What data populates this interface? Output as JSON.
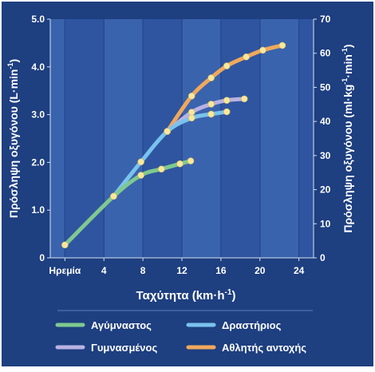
{
  "chart_data": {
    "type": "line",
    "xlabel": "Ταχύτητα (km·h",
    "xlabel_sup": "-1",
    "xlabel_end": ")",
    "ylabel_left": "Πρόσληψη οξυγόνου (L·min",
    "ylabel_left_sup": "-1",
    "ylabel_left_end": ")",
    "ylabel_right": "Πρόσληψη οξυγόνου (ml·kg",
    "ylabel_right_sup1": "-1",
    "ylabel_right_mid": "·min",
    "ylabel_right_sup2": "-1",
    "ylabel_right_end": ")",
    "x_ticks": [
      {
        "v": 0,
        "label": "Ηρεμία"
      },
      {
        "v": 4,
        "label": "4"
      },
      {
        "v": 8,
        "label": "8"
      },
      {
        "v": 12,
        "label": "12"
      },
      {
        "v": 16,
        "label": "16"
      },
      {
        "v": 20,
        "label": "20"
      },
      {
        "v": 24,
        "label": "24"
      }
    ],
    "xlim": [
      -1.5,
      25.5
    ],
    "ylim_left": [
      0,
      5.0
    ],
    "y_ticks_left": [
      "0",
      "1.0",
      "2.0",
      "3.0",
      "4.0",
      "5.0"
    ],
    "ylim_right": [
      0,
      70
    ],
    "y_ticks_right": [
      "0",
      "10",
      "20",
      "30",
      "40",
      "50",
      "60",
      "70"
    ],
    "background_bands": [
      "#3a63ad",
      "#2f55a0"
    ],
    "series": [
      {
        "name": "Αγύμναστος",
        "color": "#7fc98f",
        "x": [
          0,
          5,
          7.8,
          9.9,
          11.8,
          12.9
        ],
        "y": [
          0.27,
          1.29,
          1.73,
          1.86,
          1.97,
          2.03
        ]
      },
      {
        "name": "Δραστήριος",
        "color": "#79c3ee",
        "x": [
          5,
          7.8,
          10.5,
          13,
          15,
          16.6
        ],
        "y": [
          1.29,
          2.01,
          2.65,
          2.93,
          3.01,
          3.06
        ]
      },
      {
        "name": "Γυμνασμένος",
        "color": "#b9b2e3",
        "x": [
          10.5,
          13,
          15,
          16.6,
          18.4
        ],
        "y": [
          2.65,
          3.05,
          3.22,
          3.3,
          3.33
        ]
      },
      {
        "name": "Αθλητής αντοχής",
        "color": "#f0a85c",
        "x": [
          10.5,
          13,
          15,
          16.6,
          18.6,
          20.3,
          22.3
        ],
        "y": [
          2.65,
          3.39,
          3.77,
          4.02,
          4.21,
          4.35,
          4.45
        ]
      }
    ],
    "point_color": "#f8e79c"
  }
}
